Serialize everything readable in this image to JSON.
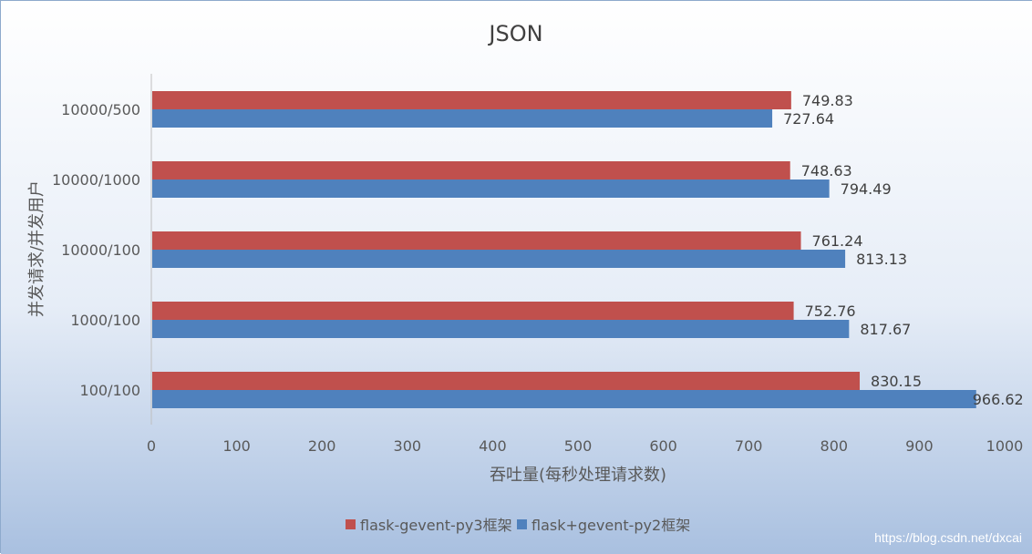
{
  "chart_data": {
    "type": "bar",
    "orientation": "horizontal",
    "title": "JSON",
    "xlabel": "吞吐量(每秒处理请求数)",
    "ylabel": "并发请求/并发用户",
    "categories": [
      "10000/500",
      "10000/1000",
      "10000/100",
      "1000/100",
      "100/100"
    ],
    "series": [
      {
        "name": "flask-gevent-py3框架",
        "color": "#c0504d",
        "values": [
          749.83,
          748.63,
          761.24,
          752.76,
          830.15
        ],
        "labels": [
          "749.83",
          "748.63",
          "761.24",
          "752.76",
          "830.15"
        ]
      },
      {
        "name": "flask+gevent-py2框架",
        "color": "#4f81bd",
        "values": [
          727.64,
          794.49,
          813.13,
          817.67,
          966.62
        ],
        "labels": [
          "727.64",
          "794.49",
          "813.13",
          "817.67",
          "966.62"
        ]
      }
    ],
    "xlim": [
      0,
      1000
    ],
    "xticks": [
      "0",
      "100",
      "200",
      "300",
      "400",
      "500",
      "600",
      "700",
      "800",
      "900",
      "1000"
    ],
    "grid": false,
    "legend_position": "bottom"
  },
  "watermark": "https://blog.csdn.net/dxcai"
}
